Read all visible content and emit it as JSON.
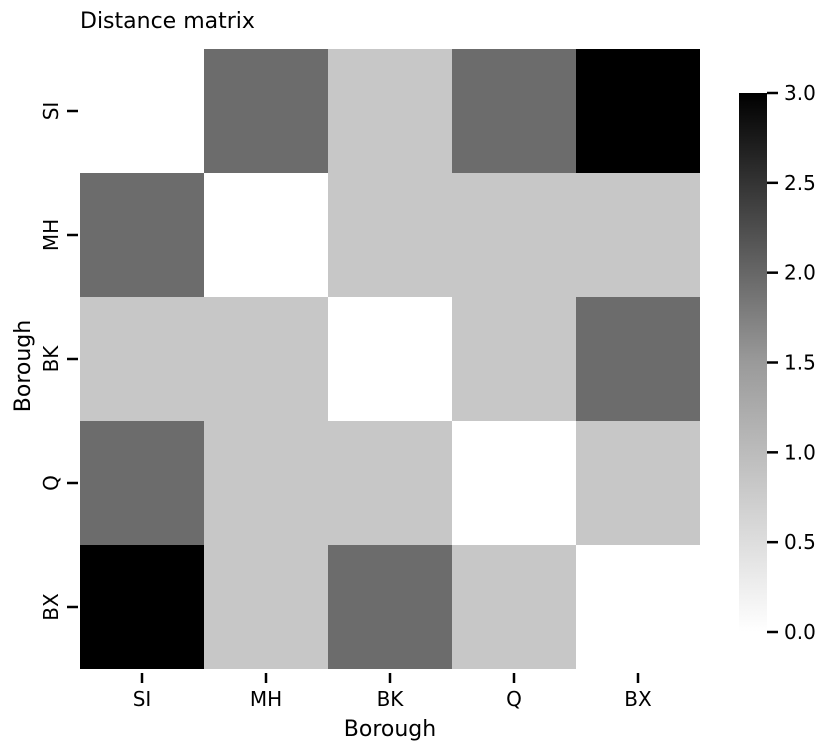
{
  "chart_data": {
    "type": "heatmap",
    "title": "Distance matrix",
    "xlabel": "Borough",
    "ylabel": "Borough",
    "x_categories": [
      "SI",
      "MH",
      "BK",
      "Q",
      "BX"
    ],
    "y_categories": [
      "SI",
      "MH",
      "BK",
      "Q",
      "BX"
    ],
    "values": [
      [
        0,
        2,
        1,
        2,
        3
      ],
      [
        2,
        0,
        1,
        1,
        1
      ],
      [
        1,
        1,
        0,
        1,
        2
      ],
      [
        2,
        1,
        1,
        0,
        1
      ],
      [
        3,
        1,
        2,
        1,
        0
      ]
    ],
    "colormap": "Greys",
    "color_min": "#ffffff",
    "color_max": "#000000",
    "colorbar": {
      "range": [
        0.0,
        3.0
      ],
      "ticks": [
        "0.0",
        "0.5",
        "1.0",
        "1.5",
        "2.0",
        "2.5",
        "3.0"
      ]
    },
    "grid": false
  }
}
